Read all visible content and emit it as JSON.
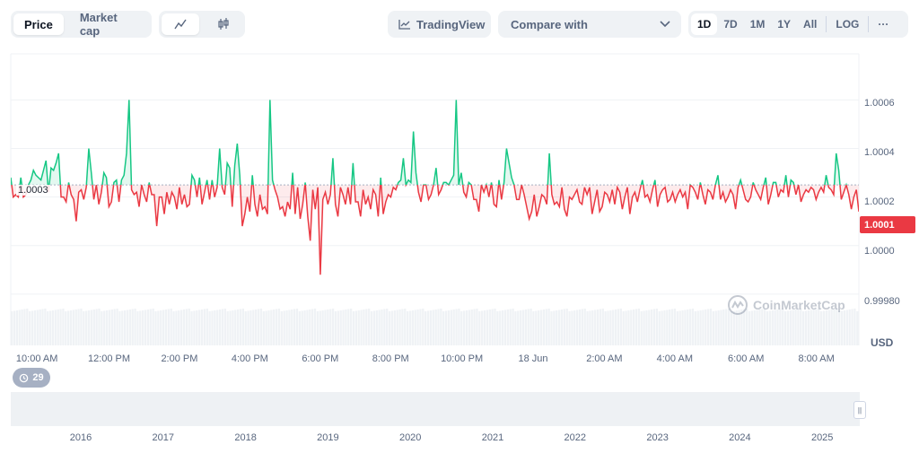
{
  "toolbar": {
    "view_tabs": [
      "Price",
      "Market cap"
    ],
    "active_view": "Price",
    "chart_type_icons": [
      "line-chart-icon",
      "candlestick-icon"
    ],
    "tradingview_label": "TradingView",
    "compare_placeholder": "Compare with",
    "ranges": [
      "1D",
      "7D",
      "1M",
      "1Y",
      "All"
    ],
    "active_range": "1D",
    "log_label": "LOG",
    "more_label": "···"
  },
  "colors": {
    "up": "#16c784",
    "down": "#ea3943",
    "baseline": "#a6b0c3",
    "accent": "#0d1421"
  },
  "watermark": "CoinMarketCap",
  "events_badge": "29",
  "currency_label": "USD",
  "chart_data": {
    "type": "line",
    "baseline_label": "1.0003",
    "baseline_value": 1.00025,
    "current_price_label": "1.0001",
    "ylim": [
      0.99977,
      1.00079
    ],
    "y_ticks": [
      "1.0006",
      "1.0004",
      "1.0002",
      "1.0000",
      "0.99980"
    ],
    "y_tick_values": [
      1.0006,
      1.0004,
      1.0002,
      1.0,
      0.9998
    ],
    "x_ticks": [
      "10:00 AM",
      "12:00 PM",
      "2:00 PM",
      "4:00 PM",
      "6:00 PM",
      "8:00 PM",
      "10:00 PM",
      "18 Jun",
      "2:00 AM",
      "4:00 AM",
      "6:00 AM",
      "8:00 AM"
    ],
    "x_tick_positions": [
      0.015,
      0.1,
      0.183,
      0.266,
      0.349,
      0.432,
      0.516,
      0.6,
      0.684,
      0.767,
      0.851,
      0.934
    ],
    "series": [
      {
        "values": [
          1.00028,
          1.0002,
          1.00021,
          1.0002,
          1.00028,
          1.0002,
          1.00021,
          1.00025,
          1.00027,
          1.00031,
          1.00029,
          1.00028,
          1.00027,
          1.00031,
          1.00035,
          1.00022,
          1.00032,
          1.00031,
          1.00034,
          1.00038,
          1.0002,
          1.0002,
          1.00018,
          1.00026,
          1.00021,
          1.00019,
          1.0001,
          1.00022,
          1.00023,
          1.00019,
          1.00024,
          1.0004,
          1.0003,
          1.00019,
          1.00025,
          1.00017,
          1.00022,
          1.0003,
          1.00028,
          1.00016,
          1.00018,
          1.00026,
          1.00027,
          1.00018,
          1.00027,
          1.00029,
          1.00038,
          1.0006,
          1.00023,
          1.00021,
          1.00022,
          1.00016,
          1.00025,
          1.00021,
          1.00018,
          1.00026,
          1.00021,
          1.00021,
          1.00008,
          1.0002,
          1.0002,
          1.00013,
          1.00022,
          1.00017,
          1.00022,
          1.0002,
          1.00015,
          1.00024,
          1.00017,
          1.00021,
          1.00016,
          1.00017,
          1.00029,
          1.00027,
          1.0002,
          1.00028,
          1.00017,
          1.00022,
          1.00027,
          1.00019,
          1.00027,
          1.0002,
          1.00024,
          1.0004,
          1.00024,
          1.00021,
          1.00034,
          1.00032,
          1.00016,
          1.00033,
          1.00042,
          1.00029,
          1.00008,
          1.00013,
          1.0002,
          1.00014,
          1.00029,
          1.00017,
          1.00012,
          1.00021,
          1.00015,
          1.00016,
          1.00013,
          1.0006,
          1.00027,
          1.00023,
          1.0002,
          1.00015,
          1.00016,
          1.00012,
          1.00018,
          1.00015,
          1.0003,
          1.00013,
          1.00024,
          1.00011,
          1.00017,
          1.00026,
          1.00012,
          1.00002,
          1.00023,
          1.00015,
          1.00024,
          0.99988,
          1.00019,
          1.00022,
          1.00017,
          1.00021,
          1.00036,
          1.00017,
          1.00012,
          1.00024,
          1.00021,
          1.00017,
          1.00024,
          1.00017,
          1.00034,
          1.00018,
          1.00018,
          1.00012,
          1.00023,
          1.00017,
          1.0002,
          1.00015,
          1.00023,
          1.00021,
          1.00012,
          1.00028,
          1.00013,
          1.00018,
          1.00021,
          1.0002,
          1.00024,
          1.00023,
          1.00026,
          1.00027,
          1.00036,
          1.00025,
          1.00027,
          1.00026,
          1.00047,
          1.0003,
          1.00022,
          1.00018,
          1.00025,
          1.00025,
          1.00019,
          1.00021,
          1.00025,
          1.00032,
          1.00021,
          1.00023,
          1.00026,
          1.00026,
          1.00025,
          1.00027,
          1.00029,
          1.0006,
          1.00025,
          1.0003,
          1.00022,
          1.0002,
          1.00026,
          1.00025,
          1.00019,
          1.00019,
          1.00014,
          1.00025,
          1.00022,
          1.00025,
          1.0002,
          1.00026,
          1.00017,
          1.00016,
          1.00027,
          1.00019,
          1.00026,
          1.0004,
          1.00034,
          1.00028,
          1.00025,
          1.00019,
          1.00019,
          1.00025,
          1.00021,
          1.00016,
          1.00011,
          1.00014,
          1.00021,
          1.00012,
          1.00016,
          1.00021,
          1.0002,
          1.00017,
          1.00038,
          1.00021,
          1.00017,
          1.00018,
          1.00016,
          1.00024,
          1.00015,
          1.00012,
          1.0002,
          1.00019,
          1.00021,
          1.00023,
          1.00018,
          1.00017,
          1.00024,
          1.00021,
          1.00024,
          1.00013,
          1.00018,
          1.00023,
          1.00014,
          1.00016,
          1.00022,
          1.00021,
          1.00018,
          1.00023,
          1.00017,
          1.00024,
          1.00022,
          1.00015,
          1.0002,
          1.00024,
          1.00013,
          1.0002,
          1.00022,
          1.00018,
          1.00023,
          1.00027,
          1.0002,
          1.00021,
          1.00018,
          1.00023,
          1.00027,
          1.00016,
          1.00021,
          1.00023,
          1.00024,
          1.00018,
          1.00019,
          1.00022,
          1.00018,
          1.00021,
          1.00023,
          1.0002,
          1.00022,
          1.00015,
          1.00025,
          1.00024,
          1.00022,
          1.00019,
          1.00026,
          1.00021,
          1.00017,
          1.00023,
          1.00022,
          1.00019,
          1.00025,
          1.00029,
          1.00019,
          1.00022,
          1.00018,
          1.0002,
          1.00023,
          1.00021,
          1.00015,
          1.00024,
          1.00027,
          1.00023,
          1.00019,
          1.00018,
          1.0002,
          1.00026,
          1.00023,
          1.00021,
          1.00019,
          1.00024,
          1.00028,
          1.00017,
          1.00021,
          1.00026,
          1.00026,
          1.0002,
          1.00023,
          1.00022,
          1.00029,
          1.0002,
          1.00027,
          1.00026,
          1.00021,
          1.00025,
          1.00018,
          1.00021,
          1.00023,
          1.00022,
          1.00024,
          1.00023,
          1.00019,
          1.00022,
          1.00024,
          1.00022,
          1.00029,
          1.00024,
          1.00023,
          1.00021,
          1.00038,
          1.00031,
          1.00019,
          1.00022,
          1.00025,
          1.00021,
          1.00015,
          1.0002,
          1.00023,
          1.00014
        ]
      }
    ],
    "volume_bars": 330,
    "navigator_years": [
      "2016",
      "2017",
      "2018",
      "2019",
      "2020",
      "2021",
      "2022",
      "2023",
      "2024",
      "2025"
    ]
  }
}
